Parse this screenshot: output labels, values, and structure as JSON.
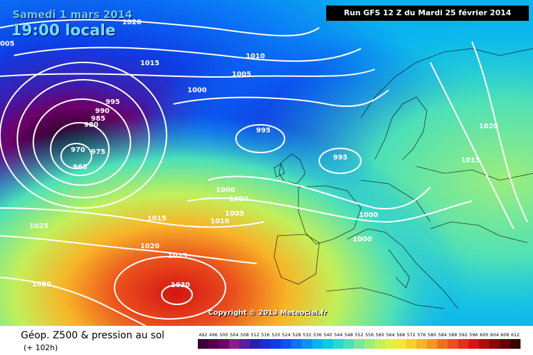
{
  "header": {
    "date": "Samedi 1 mars 2014",
    "local_time": "19:00 locale",
    "run": "Run GFS 12 Z du Mardi 25 février 2014"
  },
  "footer": {
    "copyright": "Copyright © 2013 Meteociel.fr",
    "title": "Géop. Z500 & pression au sol",
    "lead": "(+ 102h)"
  },
  "isobar_labels": [
    "1020",
    "1015",
    "1010",
    "1005",
    "1000",
    "995",
    "990",
    "985",
    "980",
    "975",
    "970",
    "965",
    "995",
    "995",
    "1000",
    "1000",
    "1005",
    "1010",
    "1015",
    "1020",
    "1025",
    "1025",
    "1030",
    "1020",
    "1000",
    "1000",
    "1020",
    "1015",
    "005"
  ],
  "scale": {
    "values": [
      "492",
      "496",
      "500",
      "504",
      "508",
      "512",
      "516",
      "520",
      "524",
      "528",
      "532",
      "536",
      "540",
      "544",
      "548",
      "552",
      "556",
      "560",
      "564",
      "568",
      "572",
      "576",
      "580",
      "584",
      "588",
      "592",
      "596",
      "600",
      "604",
      "608",
      "612"
    ],
    "colors": [
      "#3a0033",
      "#55004f",
      "#6d006b",
      "#8a1c8c",
      "#5b1d9a",
      "#2c1fb0",
      "#1c2dd2",
      "#0d3ee6",
      "#0a55f0",
      "#0a74f5",
      "#0a93f5",
      "#0ab2f0",
      "#0acbe6",
      "#2ad7d0",
      "#4ce0b8",
      "#74e89c",
      "#9cee7c",
      "#c2f05a",
      "#e0f040",
      "#f5e834",
      "#f8d02c",
      "#f8b428",
      "#f59424",
      "#f07020",
      "#ea501c",
      "#e23018",
      "#d41414",
      "#b00c0c",
      "#8c0808",
      "#640404",
      "#3c0000"
    ]
  }
}
